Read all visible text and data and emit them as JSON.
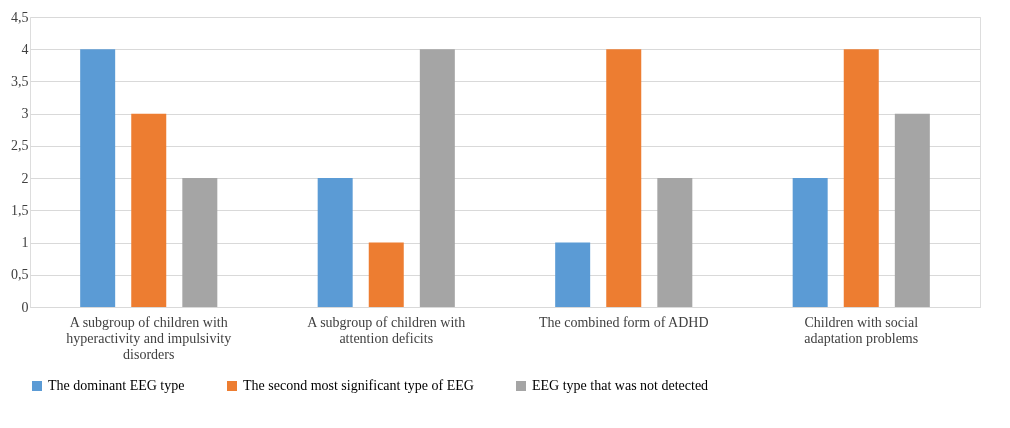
{
  "chart_data": {
    "type": "bar",
    "categories": [
      "A subgroup of children with hyperactivity and impulsivity disorders",
      "A subgroup of children with attention deficits",
      "The combined form of ADHD",
      "Children with social adaptation problems"
    ],
    "series": [
      {
        "name": "The dominant EEG type",
        "color": "#5b9bd5",
        "values": [
          4,
          2,
          1,
          2
        ]
      },
      {
        "name": "The second most significant type of EEG",
        "color": "#ed7d31",
        "values": [
          3,
          1,
          4,
          4
        ]
      },
      {
        "name": "EEG type that was not detected",
        "color": "#a5a5a5",
        "values": [
          2,
          4,
          2,
          3
        ]
      }
    ],
    "ylim": [
      0,
      4.5
    ],
    "yticks": [
      0,
      {
        "value": 0.5,
        "label": "0,5"
      },
      1,
      {
        "value": 1.5,
        "label": "1,5"
      },
      2,
      {
        "value": 2.5,
        "label": "2,5"
      },
      3,
      {
        "value": 3.5,
        "label": "3,5"
      },
      4,
      {
        "value": 4.5,
        "label": "4,5"
      }
    ],
    "grid": "y",
    "legend": "bottom"
  }
}
